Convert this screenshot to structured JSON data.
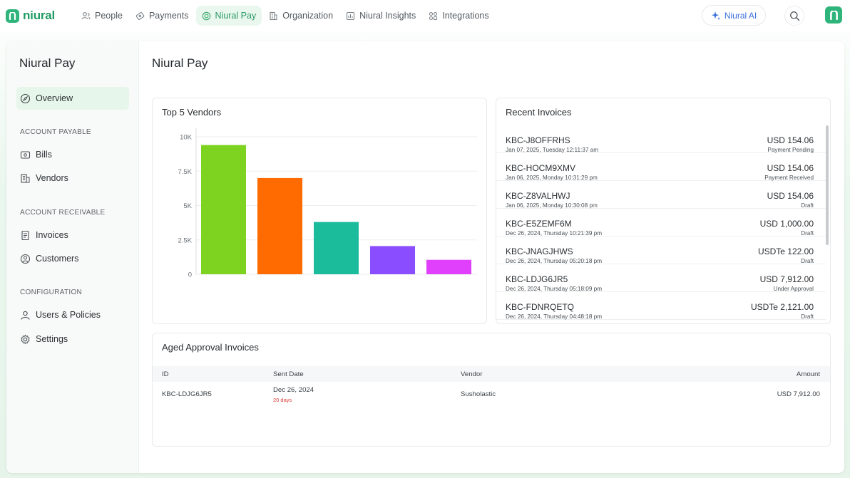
{
  "brand": {
    "name": "niural"
  },
  "nav": {
    "items": [
      {
        "label": "People",
        "icon": "people-icon"
      },
      {
        "label": "Payments",
        "icon": "payments-icon"
      },
      {
        "label": "Niural Pay",
        "icon": "niural-pay-icon",
        "active": true
      },
      {
        "label": "Organization",
        "icon": "organization-icon"
      },
      {
        "label": "Niural Insights",
        "icon": "insights-icon"
      },
      {
        "label": "Integrations",
        "icon": "integrations-icon"
      }
    ],
    "ai_label": "Niural AI"
  },
  "sidebar": {
    "title": "Niural Pay",
    "overview": "Overview",
    "sections": {
      "payable": "ACCOUNT PAYABLE",
      "receivable": "ACCOUNT RECEIVABLE",
      "configuration": "CONFIGURATION"
    },
    "items": {
      "bills": "Bills",
      "vendors": "Vendors",
      "invoices": "Invoices",
      "customers": "Customers",
      "users_policies": "Users & Policies",
      "settings": "Settings"
    }
  },
  "page": {
    "title": "Niural Pay"
  },
  "top_vendors": {
    "title": "Top 5 Vendors"
  },
  "chart_data": {
    "type": "bar",
    "categories": [
      "",
      "",
      "",
      "",
      ""
    ],
    "values": [
      9400,
      7000,
      3800,
      2050,
      1050
    ],
    "colors": [
      "#7ed321",
      "#ff6b00",
      "#1abc9c",
      "#8a4dff",
      "#e040fb"
    ],
    "yticks": [
      0,
      2500,
      5000,
      7500,
      10000
    ],
    "ytick_labels": [
      "0",
      "2.5K",
      "5K",
      "7.5K",
      "10K"
    ],
    "ylim": [
      0,
      10000
    ],
    "grid": true
  },
  "recent_invoices": {
    "title": "Recent Invoices",
    "rows": [
      {
        "id": "KBC-J8OFFRHS",
        "date": "Jan 07, 2025, Tuesday 12:11:37 am",
        "amount": "USD 154.06",
        "status": "Payment Pending"
      },
      {
        "id": "KBC-HOCM9XMV",
        "date": "Jan 06, 2025, Monday 10:31:29 pm",
        "amount": "USD 154.06",
        "status": "Payment Received"
      },
      {
        "id": "KBC-Z8VALHWJ",
        "date": "Jan 06, 2025, Monday 10:30:08 pm",
        "amount": "USD 154.06",
        "status": "Draft"
      },
      {
        "id": "KBC-E5ZEMF6M",
        "date": "Dec 26, 2024, Thursday 10:21:39 pm",
        "amount": "USD 1,000.00",
        "status": "Draft"
      },
      {
        "id": "KBC-JNAGJHWS",
        "date": "Dec 26, 2024, Thursday 05:20:18 pm",
        "amount": "USDTe 122.00",
        "status": "Draft"
      },
      {
        "id": "KBC-LDJG6JR5",
        "date": "Dec 26, 2024, Thursday 05:18:09 pm",
        "amount": "USD 7,912.00",
        "status": "Under Approval"
      },
      {
        "id": "KBC-FDNRQETQ",
        "date": "Dec 26, 2024, Thursday 04:48:18 pm",
        "amount": "USDTe 2,121.00",
        "status": "Draft"
      }
    ]
  },
  "aged": {
    "title": "Aged Approval Invoices",
    "headers": {
      "id": "ID",
      "sent_date": "Sent Date",
      "vendor": "Vendor",
      "amount": "Amount"
    },
    "rows": [
      {
        "id": "KBC-LDJG6JR5",
        "sent_date": "Dec 26, 2024",
        "days": "20 days",
        "vendor": "Susholastic",
        "amount": "USD 7,912.00"
      }
    ]
  }
}
